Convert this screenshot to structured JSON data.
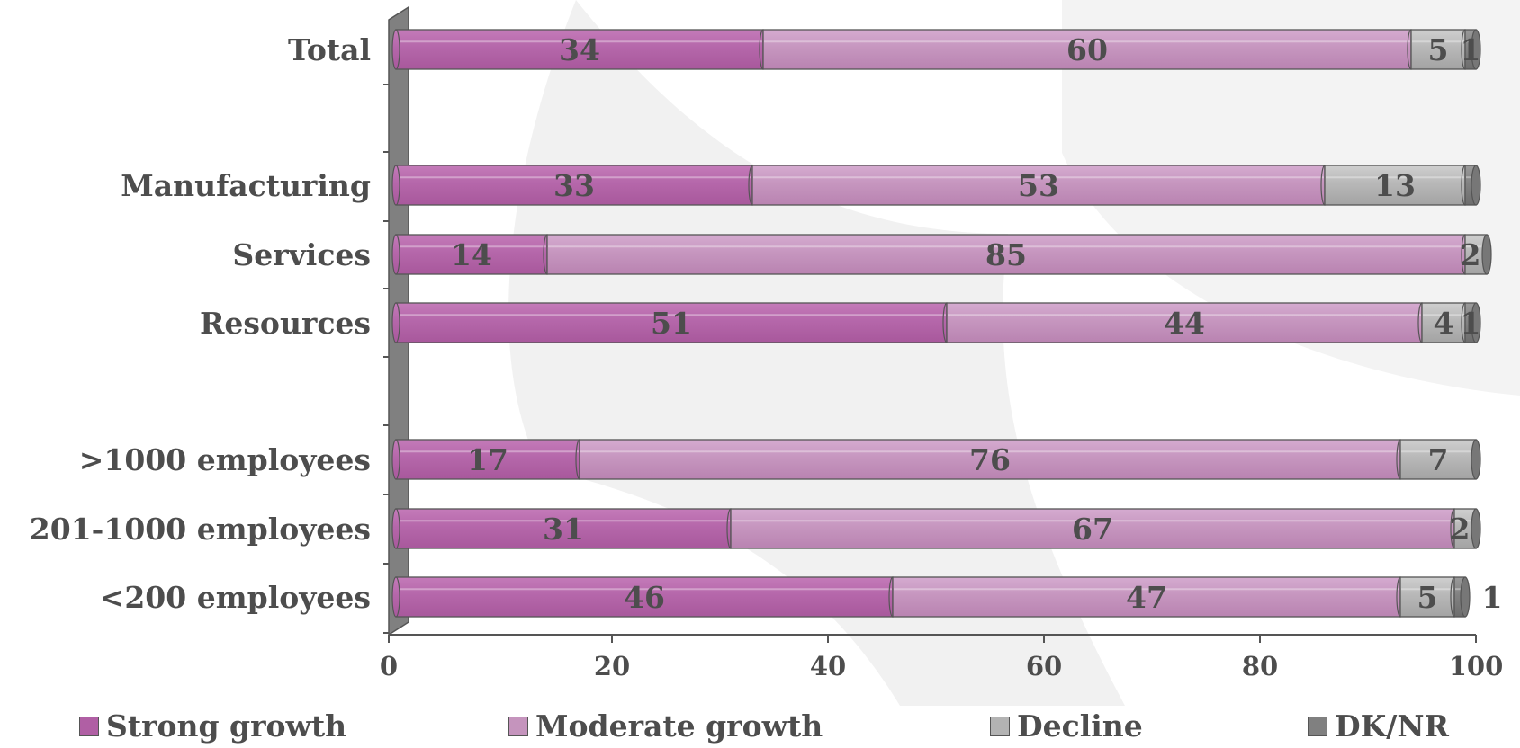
{
  "chart_data": {
    "type": "bar",
    "orientation": "horizontal",
    "stacked": true,
    "xlim": [
      0,
      100
    ],
    "xticks": [
      0,
      20,
      40,
      60,
      80,
      100
    ],
    "rows": [
      {
        "label": "Total",
        "values": [
          34,
          60,
          5,
          1
        ]
      },
      {
        "label": "Manufacturing",
        "values": [
          33,
          53,
          13,
          1
        ]
      },
      {
        "label": "Services",
        "values": [
          14,
          85,
          2,
          0
        ]
      },
      {
        "label": "Resources",
        "values": [
          51,
          44,
          4,
          1
        ]
      },
      {
        "label": ">1000 employees",
        "values": [
          17,
          76,
          7,
          0
        ]
      },
      {
        "label": "201-1000 employees",
        "values": [
          31,
          67,
          2,
          0
        ]
      },
      {
        "label": "<200 employees",
        "values": [
          46,
          47,
          5,
          1
        ]
      }
    ],
    "series": [
      {
        "name": "Strong growth",
        "color": "#b05fa4"
      },
      {
        "name": "Moderate growth",
        "color": "#c594bd"
      },
      {
        "name": "Decline",
        "color": "#b3b3b3"
      },
      {
        "name": "DK/NR",
        "color": "#808080"
      }
    ],
    "data_labels": [
      [
        "34",
        "60",
        "5",
        "1"
      ],
      [
        "33",
        "53",
        "13",
        ""
      ],
      [
        "14",
        "85",
        "2",
        ""
      ],
      [
        "51",
        "44",
        "4",
        "1"
      ],
      [
        "17",
        "76",
        "7",
        ""
      ],
      [
        "31",
        "67",
        "2",
        ""
      ],
      [
        "46",
        "47",
        "5",
        "1"
      ]
    ],
    "legend_position": "bottom",
    "grid": false
  }
}
